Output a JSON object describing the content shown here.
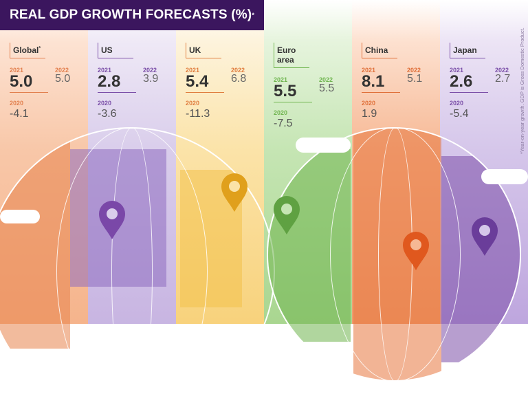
{
  "title": "REAL GDP GROWTH FORECASTS (%)",
  "title_mark": "*",
  "footnote": "*Year-on-year growth. GDP is Gross Domestic Product.",
  "year_labels": {
    "y2021": "2021",
    "y2022": "2022",
    "y2020": "2020"
  },
  "regions": [
    {
      "name": "Global",
      "mark": "*",
      "v2021": "5.0",
      "v2022": "5.0",
      "v2020": "-4.1",
      "accent": "#e2804f"
    },
    {
      "name": "US",
      "mark": "",
      "v2021": "2.8",
      "v2022": "3.9",
      "v2020": "-3.6",
      "accent": "#7b4fa8"
    },
    {
      "name": "UK",
      "mark": "",
      "v2021": "5.4",
      "v2022": "6.8",
      "v2020": "-11.3",
      "accent": "#e07e3f"
    },
    {
      "name": "Euro area",
      "mark": "",
      "v2021": "5.5",
      "v2022": "5.5",
      "v2020": "-7.5",
      "accent": "#6fb54f"
    },
    {
      "name": "China",
      "mark": "",
      "v2021": "8.1",
      "v2022": "5.1",
      "v2020": "1.9",
      "accent": "#e0703a"
    },
    {
      "name": "Japan",
      "mark": "",
      "v2021": "2.6",
      "v2022": "2.7",
      "v2020": "-5.4",
      "accent": "#7b4fa8"
    }
  ]
}
